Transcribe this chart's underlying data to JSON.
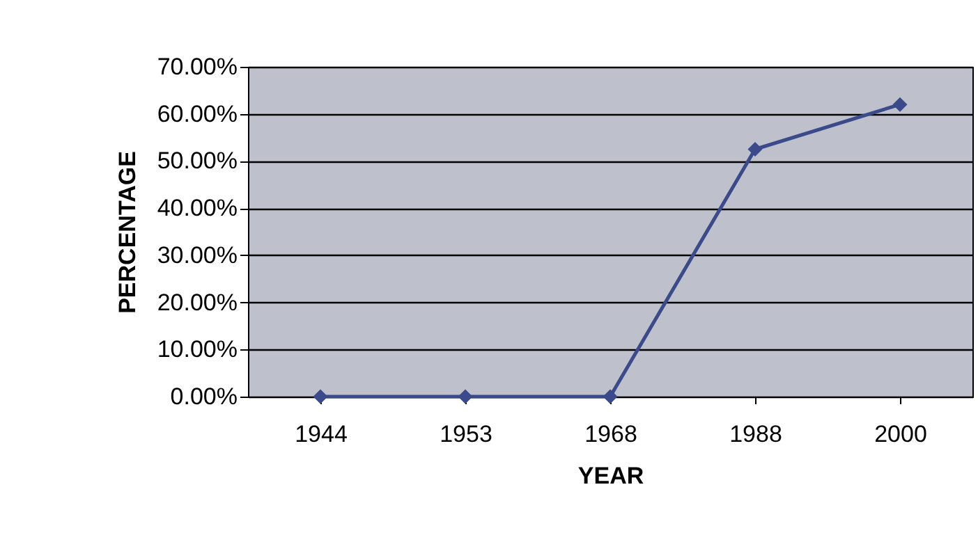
{
  "chart_data": {
    "type": "line",
    "xlabel": "YEAR",
    "ylabel": "PERCENTAGE",
    "categories": [
      "1944",
      "1953",
      "1968",
      "1988",
      "2000"
    ],
    "series": [
      {
        "color": "#3b4a8a",
        "values": [
          0,
          0,
          0,
          52.5,
          62
        ]
      }
    ],
    "ylim": [
      0,
      70
    ],
    "yticks": [
      {
        "value": 0,
        "label": "0.00%"
      },
      {
        "value": 10,
        "label": "10.00%"
      },
      {
        "value": 20,
        "label": "20.00%"
      },
      {
        "value": 30,
        "label": "30.00%"
      },
      {
        "value": 40,
        "label": "40.00%"
      },
      {
        "value": 50,
        "label": "50.00%"
      },
      {
        "value": 60,
        "label": "60.00%"
      },
      {
        "value": 70,
        "label": "70.00%"
      }
    ],
    "grid": "y",
    "marker": "diamond",
    "line_style": "solid"
  }
}
